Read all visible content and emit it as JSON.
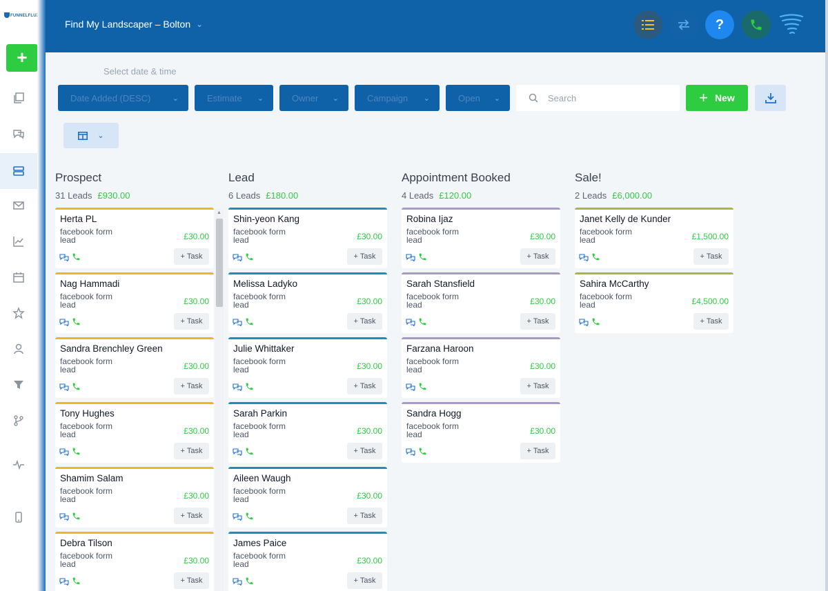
{
  "app": {
    "logo_text": "FUNNELFLUX",
    "account_name": "Find My Landscaper – Bolton"
  },
  "colors": {
    "header": "#0f62a8",
    "accent_green": "#2ecc40",
    "prospect": "#f0b429",
    "lead": "#1b8fb8",
    "appointment": "#a89ac8",
    "sale": "#a8b83a"
  },
  "rail": {
    "items": [
      {
        "icon": "copy-icon"
      },
      {
        "icon": "chat-icon"
      },
      {
        "icon": "pipeline-icon",
        "active": true
      },
      {
        "icon": "mail-icon"
      },
      {
        "icon": "chart-icon"
      },
      {
        "icon": "calendar-icon"
      },
      {
        "icon": "star-icon"
      },
      {
        "icon": "user-icon"
      },
      {
        "icon": "filter-icon"
      },
      {
        "icon": "branch-icon"
      },
      {
        "icon": "pulse-icon"
      },
      {
        "icon": "mobile-icon"
      }
    ]
  },
  "filters": {
    "date_label": "Select date & time",
    "sort_label": "Date Added (DESC)",
    "estimate_label": "Estimate",
    "owner_label": "Owner",
    "campaign_label": "Campaign",
    "status_label": "Open",
    "search_placeholder": "Search",
    "new_label": "New"
  },
  "columns": [
    {
      "title": "Prospect",
      "count_label": "31 Leads",
      "total": "£930.00",
      "cards": [
        {
          "name": "Herta PL",
          "amount": "£30.00"
        },
        {
          "name": "Nag Hammadi",
          "amount": "£30.00"
        },
        {
          "name": "Sandra Brenchley Green",
          "amount": "£30.00"
        },
        {
          "name": "Tony Hughes",
          "amount": "£30.00"
        },
        {
          "name": "Shamim Salam",
          "amount": "£30.00"
        },
        {
          "name": "Debra Tilson",
          "amount": "£30.00"
        }
      ]
    },
    {
      "title": "Lead",
      "count_label": "6 Leads",
      "total": "£180.00",
      "cards": [
        {
          "name": "Shin-yeon Kang",
          "amount": "£30.00"
        },
        {
          "name": "Melissa Ladyko",
          "amount": "£30.00"
        },
        {
          "name": "Julie Whittaker",
          "amount": "£30.00"
        },
        {
          "name": "Sarah Parkin",
          "amount": "£30.00"
        },
        {
          "name": "Aileen Waugh",
          "amount": "£30.00"
        },
        {
          "name": "James Paice",
          "amount": "£30.00"
        }
      ]
    },
    {
      "title": "Appointment Booked",
      "count_label": "4 Leads",
      "total": "£120.00",
      "cards": [
        {
          "name": "Robina Ijaz",
          "amount": "£30.00"
        },
        {
          "name": "Sarah Stansfield",
          "amount": "£30.00"
        },
        {
          "name": "Farzana Haroon",
          "amount": "£30.00"
        },
        {
          "name": "Sandra Hogg",
          "amount": "£30.00"
        }
      ]
    },
    {
      "title": "Sale!",
      "count_label": "2 Leads",
      "total": "£6,000.00",
      "cards": [
        {
          "name": "Janet Kelly de Kunder",
          "amount": "£1,500.00"
        },
        {
          "name": "Sahira McCarthy",
          "amount": "£4,500.00"
        }
      ]
    }
  ],
  "card_common": {
    "source_line1": "facebook form",
    "source_line2": "lead",
    "task_label": "+ Task"
  }
}
